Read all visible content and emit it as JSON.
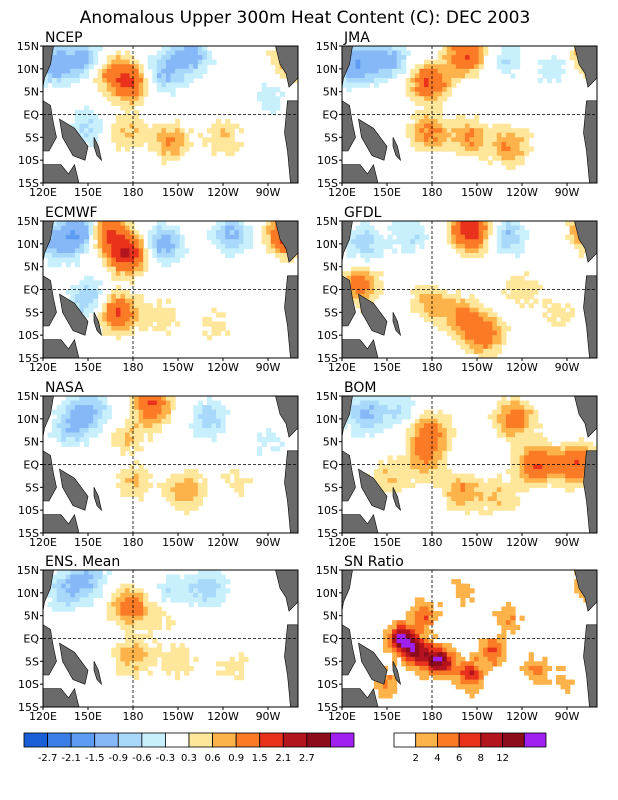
{
  "title": "Anomalous Upper 300m Heat Content (C): DEC 2003",
  "chart_data": [
    {
      "type": "heatmap",
      "title": "NCEP",
      "xticks": [
        "120E",
        "150E",
        "180",
        "150W",
        "120W",
        "90W"
      ],
      "yticks": [
        "15N",
        "10N",
        "5N",
        "EQ",
        "5S",
        "10S",
        "15S"
      ],
      "xlim": [
        120,
        290
      ],
      "ylim": [
        -15,
        15
      ],
      "features": [
        {
          "lon": 128,
          "lat": 11,
          "value": -1.2
        },
        {
          "lon": 150,
          "lat": 12,
          "value": -1.2
        },
        {
          "lon": 162,
          "lat": 10,
          "value": 1.0
        },
        {
          "lon": 178,
          "lat": 7,
          "value": 1.5
        },
        {
          "lon": 200,
          "lat": 9,
          "value": -1.0
        },
        {
          "lon": 218,
          "lat": 13,
          "value": -1.2
        },
        {
          "lon": 150,
          "lat": -3,
          "value": -0.7
        },
        {
          "lon": 175,
          "lat": -4,
          "value": 0.7
        },
        {
          "lon": 205,
          "lat": -6,
          "value": 0.9
        },
        {
          "lon": 240,
          "lat": -5,
          "value": 0.6
        },
        {
          "lon": 270,
          "lat": 4,
          "value": -0.5
        },
        {
          "lon": 287,
          "lat": 12,
          "value": 1.2
        }
      ]
    },
    {
      "type": "heatmap",
      "title": "JMA",
      "xticks": [
        "120E",
        "150E",
        "180",
        "150W",
        "120W",
        "90W"
      ],
      "yticks": [
        "15N",
        "10N",
        "5N",
        "EQ",
        "5S",
        "10S",
        "15S"
      ],
      "xlim": [
        120,
        290
      ],
      "ylim": [
        -15,
        15
      ],
      "features": [
        {
          "lon": 130,
          "lat": 11,
          "value": -1.5
        },
        {
          "lon": 152,
          "lat": 12,
          "value": -1.0
        },
        {
          "lon": 178,
          "lat": 7,
          "value": 1.5
        },
        {
          "lon": 203,
          "lat": 13,
          "value": 1.5
        },
        {
          "lon": 228,
          "lat": 12,
          "value": -0.6
        },
        {
          "lon": 178,
          "lat": -4,
          "value": 1.0
        },
        {
          "lon": 205,
          "lat": -5,
          "value": 0.9
        },
        {
          "lon": 232,
          "lat": -7,
          "value": 0.9
        },
        {
          "lon": 262,
          "lat": 10,
          "value": -0.5
        },
        {
          "lon": 285,
          "lat": 13,
          "value": 1.0
        }
      ]
    },
    {
      "type": "heatmap",
      "title": "ECMWF",
      "xticks": [
        "120E",
        "150E",
        "180",
        "150W",
        "120W",
        "90W"
      ],
      "yticks": [
        "15N",
        "10N",
        "5N",
        "EQ",
        "5S",
        "10S",
        "15S"
      ],
      "xlim": [
        120,
        290
      ],
      "ylim": [
        -15,
        15
      ],
      "features": [
        {
          "lon": 130,
          "lat": 10,
          "value": -1.0
        },
        {
          "lon": 145,
          "lat": 13,
          "value": -1.5
        },
        {
          "lon": 176,
          "lat": 8,
          "value": 2.1
        },
        {
          "lon": 162,
          "lat": 13,
          "value": 1.5
        },
        {
          "lon": 200,
          "lat": 10,
          "value": -1.2
        },
        {
          "lon": 245,
          "lat": 12,
          "value": -1.0
        },
        {
          "lon": 284,
          "lat": 12,
          "value": 2.1
        },
        {
          "lon": 150,
          "lat": -2,
          "value": -0.9
        },
        {
          "lon": 170,
          "lat": -5,
          "value": 1.5
        },
        {
          "lon": 200,
          "lat": -6,
          "value": 0.5
        },
        {
          "lon": 235,
          "lat": -8,
          "value": 0.4
        }
      ]
    },
    {
      "type": "heatmap",
      "title": "GFDL",
      "xticks": [
        "120E",
        "150E",
        "180",
        "150W",
        "120W",
        "90W"
      ],
      "yticks": [
        "15N",
        "10N",
        "5N",
        "EQ",
        "5S",
        "10S",
        "15S"
      ],
      "xlim": [
        120,
        290
      ],
      "ylim": [
        -15,
        15
      ],
      "features": [
        {
          "lon": 135,
          "lat": 10,
          "value": -0.8
        },
        {
          "lon": 165,
          "lat": 12,
          "value": -0.6
        },
        {
          "lon": 206,
          "lat": 13,
          "value": 2.1
        },
        {
          "lon": 230,
          "lat": 12,
          "value": -0.9
        },
        {
          "lon": 286,
          "lat": 13,
          "value": 1.5
        },
        {
          "lon": 132,
          "lat": 1,
          "value": 1.2
        },
        {
          "lon": 178,
          "lat": -3,
          "value": 0.8
        },
        {
          "lon": 200,
          "lat": -6,
          "value": 1.0
        },
        {
          "lon": 215,
          "lat": -10,
          "value": 1.2
        },
        {
          "lon": 240,
          "lat": 0,
          "value": 0.5
        },
        {
          "lon": 265,
          "lat": -5,
          "value": 0.4
        }
      ]
    },
    {
      "type": "heatmap",
      "title": "NASA",
      "xticks": [
        "120E",
        "150E",
        "180",
        "150W",
        "120W",
        "90W"
      ],
      "yticks": [
        "15N",
        "10N",
        "5N",
        "EQ",
        "5S",
        "10S",
        "15S"
      ],
      "xlim": [
        120,
        290
      ],
      "ylim": [
        -15,
        15
      ],
      "features": [
        {
          "lon": 138,
          "lat": 8,
          "value": -0.8
        },
        {
          "lon": 150,
          "lat": 12,
          "value": -1.0
        },
        {
          "lon": 175,
          "lat": 9,
          "value": -0.6
        },
        {
          "lon": 176,
          "lat": 7,
          "value": 1.0
        },
        {
          "lon": 192,
          "lat": 13,
          "value": 1.5
        },
        {
          "lon": 230,
          "lat": 10,
          "value": -0.8
        },
        {
          "lon": 270,
          "lat": 5,
          "value": -0.4
        },
        {
          "lon": 180,
          "lat": -4,
          "value": 0.6
        },
        {
          "lon": 215,
          "lat": -6,
          "value": 0.9
        },
        {
          "lon": 250,
          "lat": -4,
          "value": 0.4
        }
      ]
    },
    {
      "type": "heatmap",
      "title": "BOM",
      "xticks": [
        "120E",
        "150E",
        "180",
        "150W",
        "120W",
        "90W"
      ],
      "yticks": [
        "15N",
        "10N",
        "5N",
        "EQ",
        "5S",
        "10S",
        "15S"
      ],
      "xlim": [
        120,
        290
      ],
      "ylim": [
        -15,
        15
      ],
      "features": [
        {
          "lon": 135,
          "lat": 11,
          "value": -1.0
        },
        {
          "lon": 158,
          "lat": 12,
          "value": -0.6
        },
        {
          "lon": 178,
          "lat": 7,
          "value": 1.2
        },
        {
          "lon": 235,
          "lat": 10,
          "value": 1.2
        },
        {
          "lon": 175,
          "lat": 1,
          "value": 0.9
        },
        {
          "lon": 250,
          "lat": 0,
          "value": 1.5
        },
        {
          "lon": 276,
          "lat": 0,
          "value": 1.5
        },
        {
          "lon": 200,
          "lat": -6,
          "value": 0.9
        },
        {
          "lon": 150,
          "lat": -3,
          "value": 0.6
        },
        {
          "lon": 225,
          "lat": -7,
          "value": 0.6
        }
      ]
    },
    {
      "type": "heatmap",
      "title": "ENS. Mean",
      "xticks": [
        "120E",
        "150E",
        "180",
        "150W",
        "120W",
        "90W"
      ],
      "yticks": [
        "15N",
        "10N",
        "5N",
        "EQ",
        "5S",
        "10S",
        "15S"
      ],
      "xlim": [
        120,
        290
      ],
      "ylim": [
        -15,
        15
      ],
      "features": [
        {
          "lon": 135,
          "lat": 10,
          "value": -0.8
        },
        {
          "lon": 150,
          "lat": 13,
          "value": -0.9
        },
        {
          "lon": 178,
          "lat": 7,
          "value": 1.2
        },
        {
          "lon": 205,
          "lat": 10,
          "value": -0.6
        },
        {
          "lon": 230,
          "lat": 11,
          "value": -0.8
        },
        {
          "lon": 180,
          "lat": -4,
          "value": 0.8
        },
        {
          "lon": 210,
          "lat": -5,
          "value": 0.5
        },
        {
          "lon": 245,
          "lat": -6,
          "value": 0.4
        },
        {
          "lon": 200,
          "lat": 5,
          "value": 0.4
        }
      ]
    },
    {
      "type": "heatmap",
      "title": "SN Ratio",
      "xticks": [
        "120E",
        "150E",
        "180",
        "150W",
        "120W",
        "90W"
      ],
      "yticks": [
        "15N",
        "10N",
        "5N",
        "EQ",
        "5S",
        "10S",
        "15S"
      ],
      "xlim": [
        120,
        290
      ],
      "ylim": [
        -15,
        15
      ],
      "features": [
        {
          "lon": 160,
          "lat": 0,
          "value": 12
        },
        {
          "lon": 170,
          "lat": -3,
          "value": 10
        },
        {
          "lon": 185,
          "lat": -5,
          "value": 12
        },
        {
          "lon": 205,
          "lat": -8,
          "value": 8
        },
        {
          "lon": 175,
          "lat": 5,
          "value": 6
        },
        {
          "lon": 220,
          "lat": -3,
          "value": 6
        },
        {
          "lon": 250,
          "lat": -7,
          "value": 4
        },
        {
          "lon": 230,
          "lat": 4,
          "value": 4
        },
        {
          "lon": 150,
          "lat": -10,
          "value": 4
        },
        {
          "lon": 268,
          "lat": -10,
          "value": 3
        },
        {
          "lon": 200,
          "lat": 10,
          "value": 3
        },
        {
          "lon": 285,
          "lat": 12,
          "value": 6
        }
      ]
    }
  ],
  "colorbars": [
    {
      "labels": [
        "-2.7",
        "-2.1",
        "-1.5",
        "-0.9",
        "-0.6",
        "-0.3",
        "0.3",
        "0.6",
        "0.9",
        "1.5",
        "2.1",
        "2.7"
      ],
      "colors": [
        "#1a5fd8",
        "#3a7ee8",
        "#5c9cf4",
        "#86b8f7",
        "#a8d8fa",
        "#c8f0fc",
        "#ffffff",
        "#fee69a",
        "#fdb24a",
        "#fb7a26",
        "#e8321c",
        "#b4141e",
        "#8c0c1c",
        "#a020f0"
      ]
    },
    {
      "labels": [
        "2",
        "4",
        "6",
        "8",
        "12"
      ],
      "colors": [
        "#ffffff",
        "#fdb24a",
        "#fb7a26",
        "#e8321c",
        "#b4141e",
        "#8c0c1c",
        "#a020f0"
      ]
    }
  ],
  "land_color": "#6a6a6a"
}
